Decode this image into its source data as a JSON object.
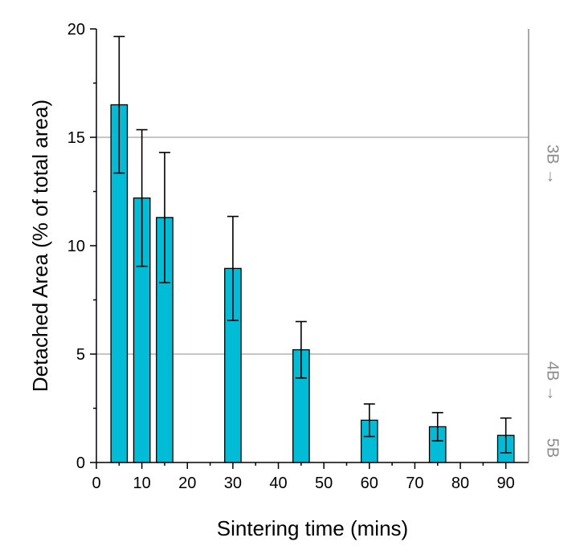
{
  "chart_data": {
    "type": "bar",
    "xlabel": "Sintering time (mins)",
    "ylabel": "Detached Area (% of total area)",
    "xlim": [
      0,
      95
    ],
    "ylim": [
      0,
      20
    ],
    "x_ticks": [
      "0",
      "10",
      "20",
      "30",
      "40",
      "50",
      "60",
      "70",
      "80",
      "90"
    ],
    "y_ticks": [
      "0",
      "5",
      "10",
      "15",
      "20"
    ],
    "x": [
      5,
      10,
      15,
      30,
      45,
      60,
      75,
      90
    ],
    "values": [
      16.5,
      12.2,
      11.3,
      8.95,
      5.2,
      1.95,
      1.65,
      1.25
    ],
    "error": [
      3.15,
      3.15,
      3.0,
      2.4,
      1.3,
      0.75,
      0.65,
      0.8
    ],
    "bar_color": "#00BCD6",
    "grid": false,
    "reference_lines": [
      {
        "value": 15,
        "label": "3B →"
      },
      {
        "value": 5,
        "label": "4B →"
      },
      {
        "value": 0,
        "label": "5B"
      }
    ],
    "reference_color": "#8c8c8c"
  }
}
